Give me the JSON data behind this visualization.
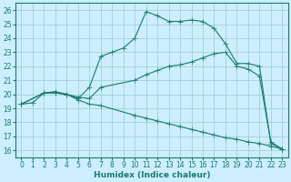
{
  "xlabel": "Humidex (Indice chaleur)",
  "bg_color": "#cceeff",
  "grid_color": "#99cccc",
  "line_color": "#1a7a6e",
  "xlim": [
    -0.5,
    23.5
  ],
  "ylim": [
    15.5,
    26.5
  ],
  "yticks": [
    16,
    17,
    18,
    19,
    20,
    21,
    22,
    23,
    24,
    25,
    26
  ],
  "xticks": [
    0,
    1,
    2,
    3,
    4,
    5,
    6,
    7,
    8,
    9,
    10,
    11,
    12,
    13,
    14,
    15,
    16,
    17,
    18,
    19,
    20,
    21,
    22,
    23
  ],
  "line1_x": [
    0,
    1,
    2,
    3,
    4,
    5,
    6,
    7,
    8,
    9,
    10,
    11,
    12,
    13,
    14,
    15,
    16,
    17,
    18,
    19,
    20,
    21,
    22,
    23
  ],
  "line1_y": [
    19.3,
    19.4,
    20.1,
    20.2,
    20.0,
    19.7,
    20.5,
    22.7,
    23.0,
    23.3,
    24.0,
    25.9,
    25.6,
    25.2,
    25.2,
    25.3,
    25.2,
    24.7,
    23.6,
    22.2,
    22.2,
    22.0,
    16.5,
    16.1
  ],
  "line2_x": [
    0,
    2,
    3,
    4,
    5,
    6,
    7,
    10,
    11,
    12,
    13,
    14,
    15,
    16,
    17,
    18,
    19,
    20,
    21,
    22,
    23
  ],
  "line2_y": [
    19.3,
    20.1,
    20.1,
    20.0,
    19.8,
    19.7,
    20.5,
    21.0,
    21.4,
    21.7,
    22.0,
    22.1,
    22.3,
    22.6,
    22.9,
    23.0,
    22.0,
    21.8,
    21.3,
    16.6,
    16.1
  ],
  "line3_x": [
    0,
    2,
    3,
    4,
    5,
    6,
    7,
    10,
    11,
    12,
    13,
    14,
    15,
    16,
    17,
    18,
    19,
    20,
    21,
    22,
    23
  ],
  "line3_y": [
    19.3,
    20.1,
    20.1,
    20.0,
    19.6,
    19.3,
    19.2,
    18.5,
    18.3,
    18.1,
    17.9,
    17.7,
    17.5,
    17.3,
    17.1,
    16.9,
    16.8,
    16.6,
    16.5,
    16.3,
    16.1
  ]
}
